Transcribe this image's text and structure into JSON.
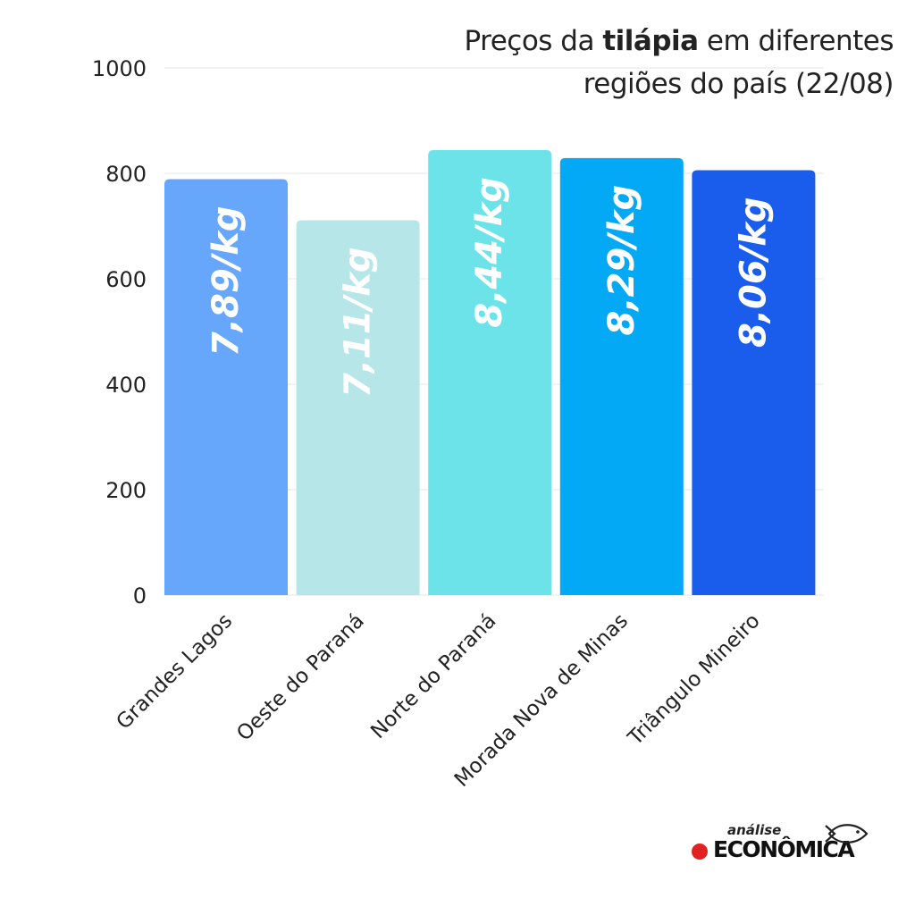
{
  "title": {
    "prefix": "Preços da ",
    "bold": "tilápia",
    "suffix": " em diferentes",
    "line2": "regiões do país (22/08)"
  },
  "chart_data": {
    "type": "bar",
    "categories": [
      "Grandes Lagos",
      "Oeste do Paraná",
      "Norte do Paraná",
      "Morada Nova de Minas",
      "Triângulo Mineiro"
    ],
    "values": [
      789,
      711,
      844,
      829,
      806
    ],
    "bar_labels": [
      "7,89/kg",
      "7,11/kg",
      "8,44/kg",
      "8,29/kg",
      "8,06/kg"
    ],
    "bar_colors": [
      "#66a6fb",
      "#b6e6e8",
      "#6ce3e9",
      "#04a9f5",
      "#1a5cec"
    ],
    "ylim": [
      0,
      1000
    ],
    "yticks": [
      0,
      200,
      400,
      600,
      800,
      1000
    ],
    "grid": true,
    "legend": "none"
  },
  "logo": {
    "small": "análise",
    "big": "ECONÔMICA",
    "icon": "fish-icon"
  }
}
